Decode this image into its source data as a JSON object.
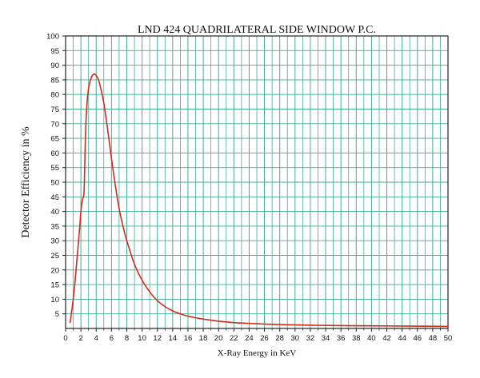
{
  "chart_data": {
    "type": "line",
    "title": "LND 424 QUADRILATERAL SIDE WINDOW P.C.",
    "xlabel": "X-Ray Energy in KeV",
    "ylabel": "Detector Efficiency in %",
    "xlim": [
      0,
      50
    ],
    "ylim": [
      0,
      100
    ],
    "x_ticks": [
      "0",
      "2",
      "4",
      "6",
      "8",
      "10",
      "12",
      "14",
      "16",
      "18",
      "20",
      "22",
      "24",
      "26",
      "28",
      "30",
      "32",
      "34",
      "36",
      "38",
      "40",
      "42",
      "44",
      "46",
      "48",
      "50"
    ],
    "y_ticks": [
      "5",
      "10",
      "15",
      "20",
      "25",
      "30",
      "35",
      "40",
      "45",
      "50",
      "55",
      "60",
      "65",
      "70",
      "75",
      "80",
      "85",
      "90",
      "95",
      "100"
    ],
    "grid": true,
    "colors": {
      "curve": "#d42a1e",
      "grid": "#3fae95",
      "axis": "#222222"
    },
    "series": [
      {
        "x": [
          0.6,
          0.9,
          1.2,
          1.5,
          1.8,
          2.0,
          2.2,
          2.4,
          2.5,
          2.6,
          2.8,
          3.0,
          3.2,
          3.5,
          3.8,
          4.0,
          4.3,
          4.6,
          5.0,
          5.5,
          6.0,
          6.5,
          7.0,
          7.5,
          8.0,
          9.0,
          10.0,
          11.0,
          12.0,
          13.0,
          14.0,
          15.0,
          16.0,
          18.0,
          20.0,
          22.0,
          25.0,
          28.0,
          30.0,
          35.0,
          40.0,
          45.0,
          50.0
        ],
        "y": [
          2,
          8,
          15,
          24,
          33,
          40,
          44,
          46,
          55,
          66,
          77,
          82,
          84.5,
          86.5,
          87,
          86.5,
          85,
          82,
          77,
          68,
          58,
          49,
          41,
          35,
          30,
          22,
          16.5,
          12.5,
          9.5,
          7.5,
          6,
          5,
          4.2,
          3.2,
          2.5,
          2,
          1.6,
          1.3,
          1.2,
          1,
          0.9,
          0.8,
          0.7
        ]
      }
    ]
  }
}
